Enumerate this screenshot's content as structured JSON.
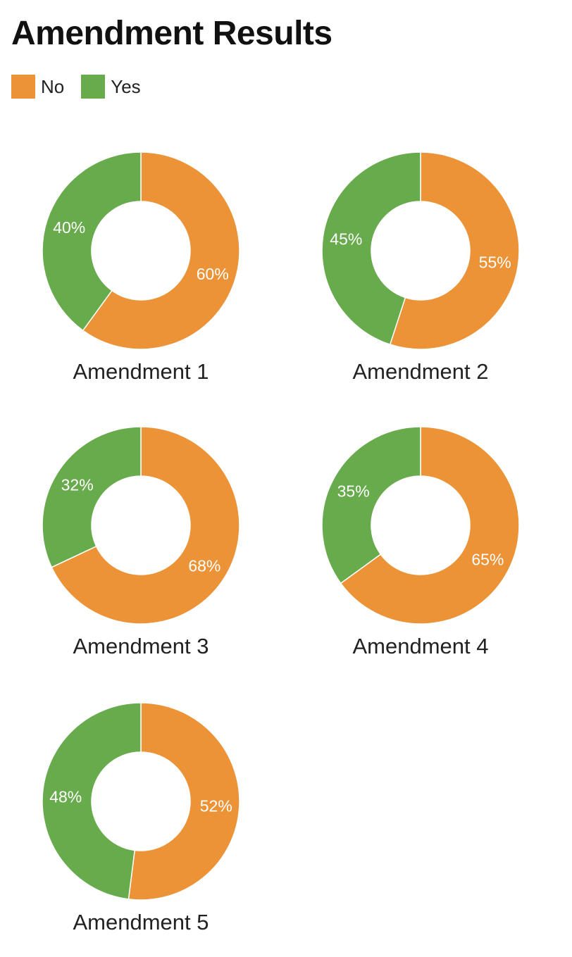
{
  "title": "Amendment Results",
  "legend": [
    {
      "label": "No",
      "color": "#EB9336"
    },
    {
      "label": "Yes",
      "color": "#67AB4C"
    }
  ],
  "chart_data": [
    {
      "type": "pie",
      "title": "Amendment 1",
      "categories": [
        "No",
        "Yes"
      ],
      "values": [
        60,
        40
      ],
      "labels": [
        "60%",
        "40%"
      ],
      "colors": [
        "#EB9336",
        "#67AB4C"
      ],
      "legend": "top-left"
    },
    {
      "type": "pie",
      "title": "Amendment 2",
      "categories": [
        "No",
        "Yes"
      ],
      "values": [
        55,
        45
      ],
      "labels": [
        "55%",
        "45%"
      ],
      "colors": [
        "#EB9336",
        "#67AB4C"
      ],
      "legend": "top-left"
    },
    {
      "type": "pie",
      "title": "Amendment 3",
      "categories": [
        "No",
        "Yes"
      ],
      "values": [
        68,
        32
      ],
      "labels": [
        "68%",
        "32%"
      ],
      "colors": [
        "#EB9336",
        "#67AB4C"
      ],
      "legend": "top-left"
    },
    {
      "type": "pie",
      "title": "Amendment 4",
      "categories": [
        "No",
        "Yes"
      ],
      "values": [
        65,
        35
      ],
      "labels": [
        "65%",
        "35%"
      ],
      "colors": [
        "#EB9336",
        "#67AB4C"
      ],
      "legend": "top-left"
    },
    {
      "type": "pie",
      "title": "Amendment 5",
      "categories": [
        "No",
        "Yes"
      ],
      "values": [
        52,
        48
      ],
      "labels": [
        "52%",
        "48%"
      ],
      "colors": [
        "#EB9336",
        "#67AB4C"
      ],
      "legend": "top-left"
    }
  ]
}
